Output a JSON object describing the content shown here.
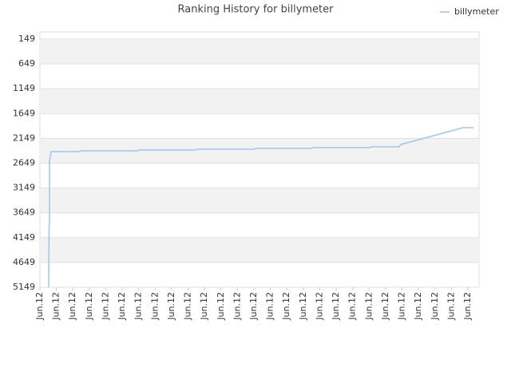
{
  "chart_data": {
    "type": "line",
    "title": "Ranking History for billymeter",
    "series": [
      {
        "name": "billymeter",
        "color": "#99c7f0",
        "x": [
          0.53,
          0.56,
          0.58,
          0.58,
          0.63,
          0.68,
          2.43,
          2.47,
          5.92,
          6.01,
          9.46,
          9.56,
          13.0,
          13.1,
          16.49,
          16.59,
          20.03,
          20.13,
          21.83,
          21.93,
          25.71,
          26.34
        ],
        "values": [
          5149,
          3912,
          3864,
          2625,
          2497,
          2416,
          2416,
          2400,
          2400,
          2384,
          2384,
          2368,
          2368,
          2352,
          2352,
          2336,
          2336,
          2320,
          2320,
          2272,
          1934,
          1934
        ]
      }
    ],
    "xlim": [
      0,
      26.68
    ],
    "xticks": [
      {
        "value": 0,
        "label": "Jun.12"
      },
      {
        "value": 1,
        "label": "Jun.12"
      },
      {
        "value": 2,
        "label": "Jun.12"
      },
      {
        "value": 3,
        "label": "Jun.12"
      },
      {
        "value": 4,
        "label": "Jun.12"
      },
      {
        "value": 5,
        "label": "Jun.12"
      },
      {
        "value": 6,
        "label": "Jun.12"
      },
      {
        "value": 7,
        "label": "Jun.12"
      },
      {
        "value": 8,
        "label": "Jun.12"
      },
      {
        "value": 9,
        "label": "Jun.12"
      },
      {
        "value": 10,
        "label": "Jun.12"
      },
      {
        "value": 11,
        "label": "Jun.12"
      },
      {
        "value": 12,
        "label": "Jun.12"
      },
      {
        "value": 13,
        "label": "Jun.12"
      },
      {
        "value": 14,
        "label": "Jun.12"
      },
      {
        "value": 15,
        "label": "Jun.12"
      },
      {
        "value": 16,
        "label": "Jun.12"
      },
      {
        "value": 17,
        "label": "Jun.12"
      },
      {
        "value": 18,
        "label": "Jun.12"
      },
      {
        "value": 19,
        "label": "Jun.12"
      },
      {
        "value": 20,
        "label": "Jun.12"
      },
      {
        "value": 21,
        "label": "Jun.12"
      },
      {
        "value": 22,
        "label": "Jun.12"
      },
      {
        "value": 23,
        "label": "Jun.12"
      },
      {
        "value": 24,
        "label": "Jun.12"
      },
      {
        "value": 25,
        "label": "Jun.12"
      },
      {
        "value": 26,
        "label": "Jun.12"
      }
    ],
    "ylim": [
      5149,
      4
    ],
    "yticks": [
      149,
      649,
      1149,
      1649,
      2149,
      2649,
      3149,
      3649,
      4149,
      4649,
      5149
    ],
    "grid": true,
    "legend": "top-right"
  }
}
